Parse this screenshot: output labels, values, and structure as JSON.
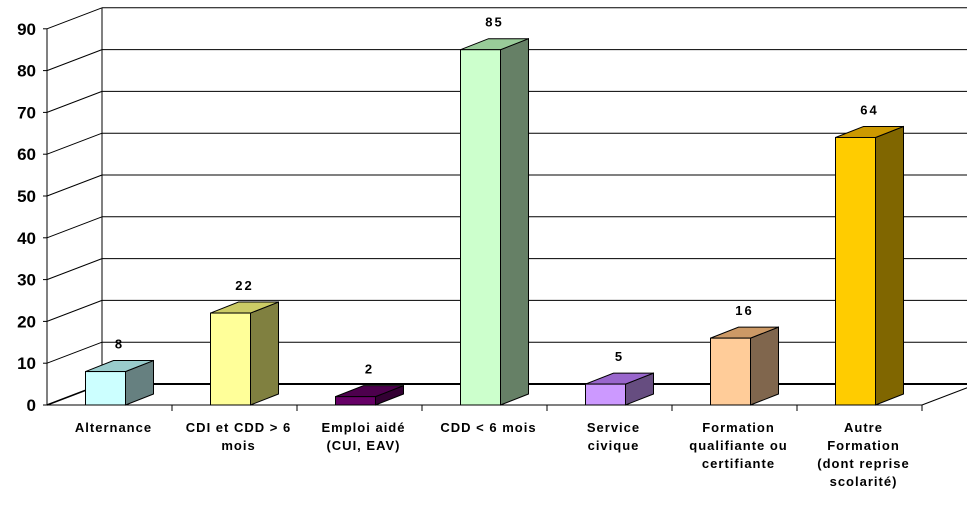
{
  "chart_data": {
    "type": "bar",
    "categories": [
      "Alternance",
      "CDI et CDD > 6\nmois",
      "Emploi aidé\n(CUI, EAV)",
      "CDD < 6 mois",
      "Service\ncivique",
      "Formation\nqualifiante ou\ncertifiante",
      "Autre\nFormation\n(dont reprise\nscolarité)"
    ],
    "values": [
      8,
      22,
      2,
      85,
      5,
      16,
      64
    ],
    "value_labels": [
      "8",
      "22",
      "2",
      "85",
      "5",
      "16",
      "64"
    ],
    "ylim": [
      0,
      90
    ],
    "yticks": [
      "0",
      "10",
      "20",
      "30",
      "40",
      "50",
      "60",
      "70",
      "80",
      "90"
    ],
    "grid": true,
    "title": "",
    "xlabel": "",
    "ylabel": "",
    "colors": {
      "fronts": [
        "#ccffff",
        "#ffff99",
        "#660066",
        "#ccffcc",
        "#cc99ff",
        "#ffcc99",
        "#ffcc00"
      ],
      "sides": [
        "#668080",
        "#808040",
        "#330033",
        "#668066",
        "#664d80",
        "#80664d",
        "#806600"
      ],
      "tops": [
        "#99cccc",
        "#cccc66",
        "#4d004d",
        "#99cc99",
        "#9966cc",
        "#cc9966",
        "#cc9900"
      ]
    }
  }
}
